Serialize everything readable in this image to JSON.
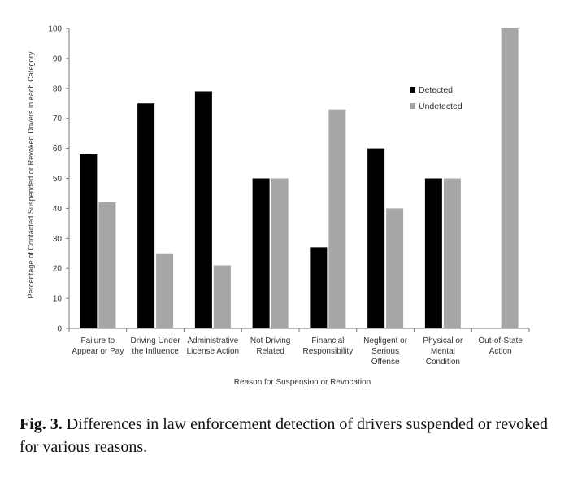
{
  "chart_data": {
    "type": "bar",
    "title": "",
    "xlabel": "Reason for Suspension or Revocation",
    "ylabel": "Percentage of Contacted Suspended or Revoked Drivers in each Category",
    "ylim": [
      0,
      100
    ],
    "yticks": [
      "0",
      "10",
      "20",
      "30",
      "40",
      "50",
      "60",
      "70",
      "80",
      "90",
      "100"
    ],
    "grid": false,
    "legend_position": "top-right",
    "categories": [
      [
        "Failure to",
        "Appear or Pay"
      ],
      [
        "Driving Under",
        "the Influence"
      ],
      [
        "Administrative",
        "License Action"
      ],
      [
        "Not Driving",
        "Related"
      ],
      [
        "Financial",
        "Responsibility"
      ],
      [
        "Negligent or",
        "Serious",
        "Offense"
      ],
      [
        "Physical or",
        "Mental",
        "Condition"
      ],
      [
        "Out-of-State",
        "Action"
      ]
    ],
    "series": [
      {
        "name": "Detected",
        "color": "#000000",
        "values": [
          58,
          75,
          79,
          50,
          27,
          60,
          50,
          0
        ]
      },
      {
        "name": "Undetected",
        "color": "#a6a6a6",
        "values": [
          42,
          25,
          21,
          50,
          73,
          40,
          50,
          100
        ]
      }
    ]
  },
  "caption": {
    "label": "Fig. 3.",
    "text": " Differences in law enforcement detection of drivers suspended or revoked for various reasons."
  }
}
